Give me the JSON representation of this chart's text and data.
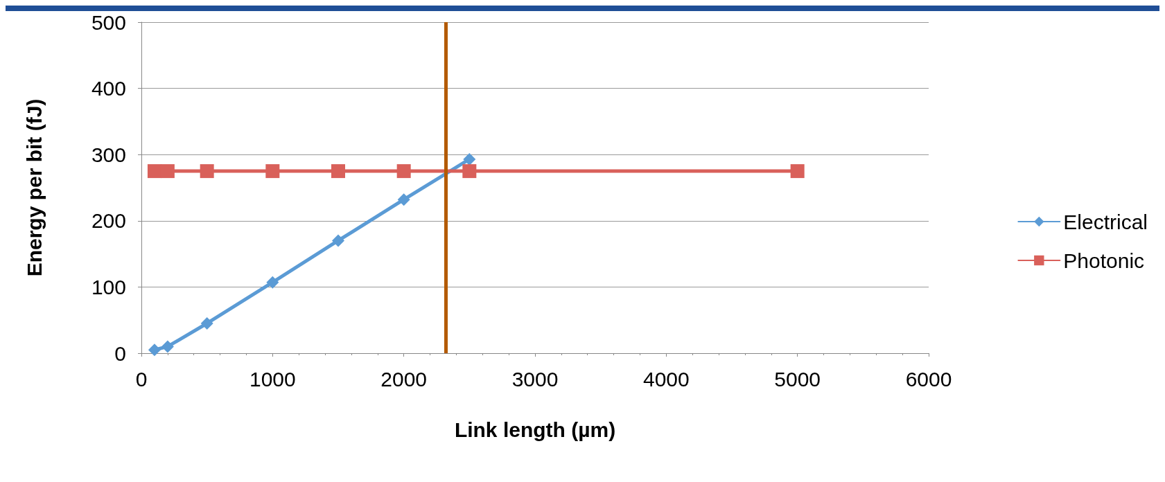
{
  "chart_data": {
    "type": "line",
    "xlabel": "Link length (µm)",
    "ylabel": "Energy per bit (fJ)",
    "xlim": [
      0,
      6000
    ],
    "xticks": [
      0,
      1000,
      2000,
      3000,
      4000,
      5000,
      6000
    ],
    "ylim": [
      0,
      500
    ],
    "yticks": [
      0,
      100,
      200,
      300,
      400,
      500
    ],
    "grid": "y",
    "legend": "right",
    "series": [
      {
        "name": "Electrical",
        "color": "#5b9bd5",
        "marker": "diamond",
        "x": [
          100,
          200,
          500,
          1000,
          1500,
          2000,
          2500
        ],
        "values": [
          5,
          10,
          45,
          107,
          170,
          232,
          293
        ]
      },
      {
        "name": "Photonic",
        "color": "#d9605a",
        "marker": "square",
        "x": [
          100,
          200,
          500,
          1000,
          1500,
          2000,
          2500,
          5000
        ],
        "values": [
          275,
          275,
          275,
          275,
          275,
          275,
          275,
          275
        ]
      }
    ],
    "ref_lines": [
      {
        "axis": "x",
        "value": 2320,
        "color": "#b35a00",
        "line_style": "solid"
      }
    ]
  }
}
